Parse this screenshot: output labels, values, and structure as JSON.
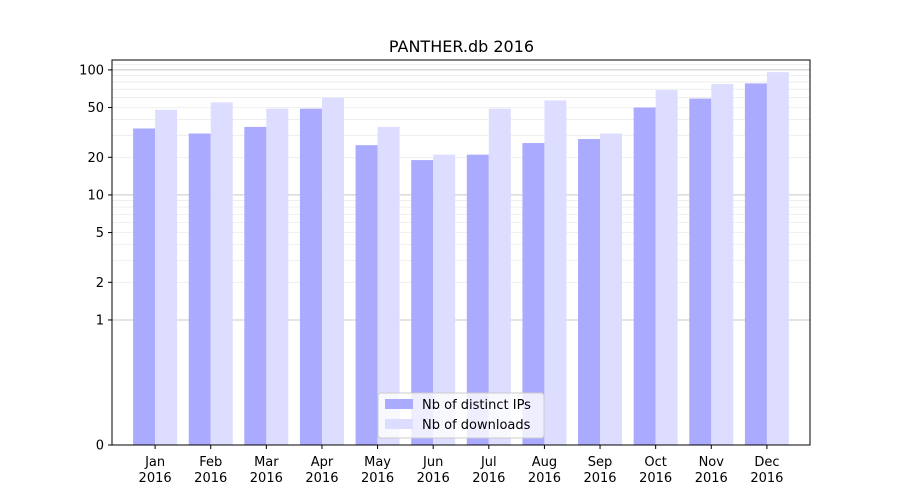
{
  "chart_data": {
    "type": "bar",
    "title": "PANTHER.db 2016",
    "xlabel": "",
    "ylabel": "",
    "yscale": "symlog",
    "ylim": [
      0,
      120
    ],
    "yticks": [
      0,
      1,
      2,
      5,
      10,
      20,
      50,
      100
    ],
    "ytick_labels": [
      "0",
      "1",
      "2",
      "5",
      "10",
      "20",
      "50",
      "100"
    ],
    "categories": [
      "Jan\n2016",
      "Feb\n2016",
      "Mar\n2016",
      "Apr\n2016",
      "May\n2016",
      "Jun\n2016",
      "Jul\n2016",
      "Aug\n2016",
      "Sep\n2016",
      "Oct\n2016",
      "Nov\n2016",
      "Dec\n2016"
    ],
    "series": [
      {
        "name": "Nb of distinct IPs",
        "color": "#aaaaff",
        "values": [
          34,
          31,
          35,
          49,
          25,
          19,
          21,
          26,
          28,
          50,
          59,
          78
        ]
      },
      {
        "name": "Nb of downloads",
        "color": "#ddddff",
        "values": [
          48,
          55,
          49,
          60,
          35,
          21,
          49,
          57,
          31,
          69,
          77,
          96
        ]
      }
    ],
    "grid": true,
    "legend_position": "lower center"
  }
}
